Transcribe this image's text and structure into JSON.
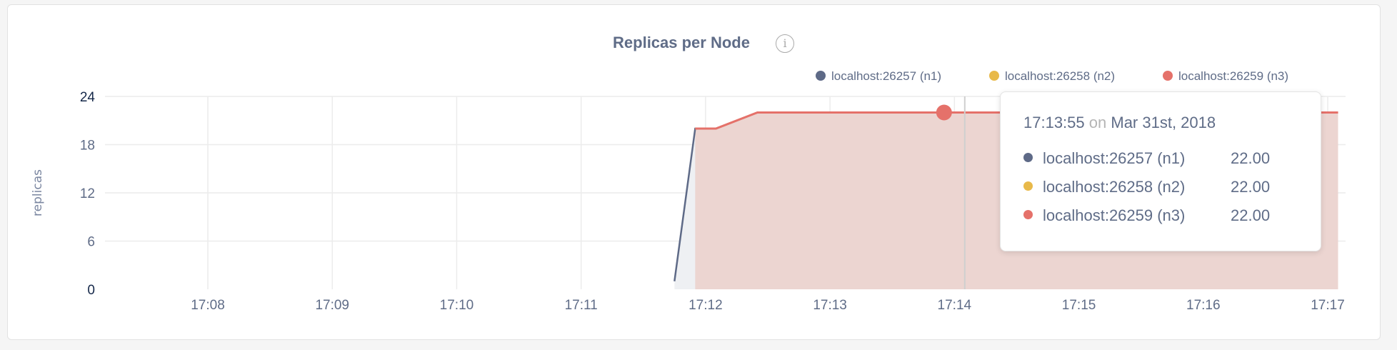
{
  "chart_data": {
    "type": "area",
    "title": "Replicas per Node",
    "ylabel": "replicas",
    "xlabel": "",
    "ylim": [
      0,
      24
    ],
    "yticks": [
      "0",
      "6",
      "12",
      "18",
      "24"
    ],
    "xticks": [
      "17:08",
      "17:09",
      "17:10",
      "17:11",
      "17:12",
      "17:13",
      "17:14",
      "17:15",
      "17:16",
      "17:17"
    ],
    "grid": true,
    "legend_position": "top-right",
    "series": [
      {
        "name": "localhost:26257 (n1)",
        "color": "#5e6a87",
        "x": [
          "17:11:45",
          "17:11:55",
          "17:12:05",
          "17:12:25",
          "17:17:05"
        ],
        "y": [
          1,
          20,
          20,
          22,
          22
        ]
      },
      {
        "name": "localhost:26258 (n2)",
        "color": "#e8b94a",
        "x": [
          "17:11:55",
          "17:12:05",
          "17:12:25",
          "17:17:05"
        ],
        "y": [
          20,
          20,
          22,
          22
        ]
      },
      {
        "name": "localhost:26259 (n3)",
        "color": "#e5716a",
        "x": [
          "17:11:55",
          "17:12:05",
          "17:12:25",
          "17:17:05"
        ],
        "y": [
          20,
          20,
          22,
          22
        ]
      }
    ],
    "hover_time": "17:13:55"
  },
  "info_icon": "info-icon",
  "tooltip": {
    "time": "17:13:55",
    "on": "on",
    "date": "Mar 31st, 2018",
    "rows": [
      {
        "label": "localhost:26257 (n1)",
        "value": "22.00",
        "color": "#5e6a87"
      },
      {
        "label": "localhost:26258 (n2)",
        "value": "22.00",
        "color": "#e8b94a"
      },
      {
        "label": "localhost:26259 (n3)",
        "value": "22.00",
        "color": "#e5716a"
      }
    ]
  }
}
